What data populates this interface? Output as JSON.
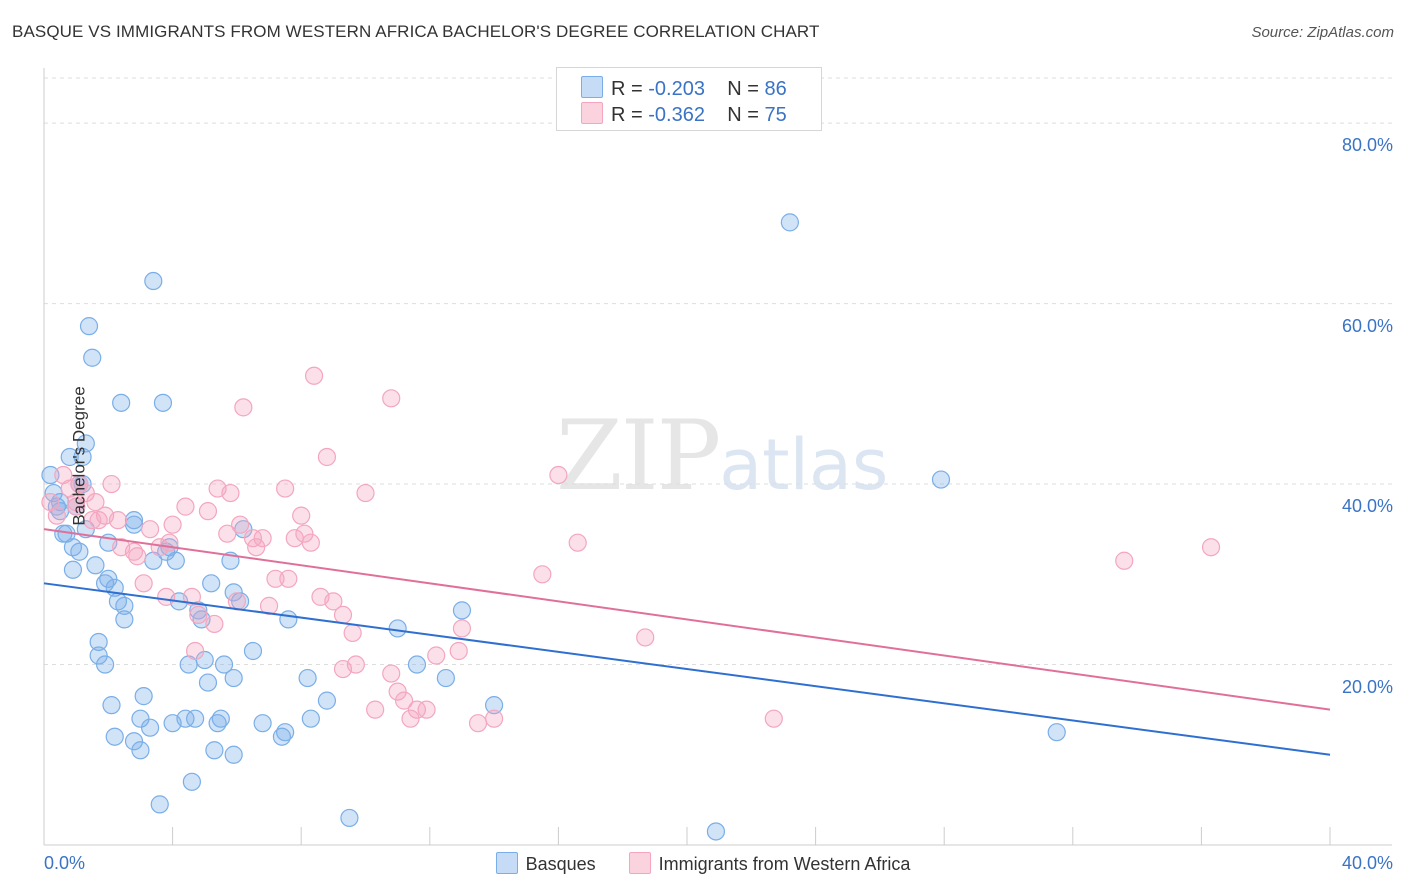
{
  "header": {
    "title": "BASQUE VS IMMIGRANTS FROM WESTERN AFRICA BACHELOR'S DEGREE CORRELATION CHART",
    "source": "Source: ZipAtlas.com"
  },
  "watermark": {
    "zip": "ZIP",
    "atlas": "atlas"
  },
  "legend": {
    "rows": [
      {
        "r_label": "R =",
        "r_value": "-0.203",
        "n_label": "N =",
        "n_value": "86",
        "color": "#a8c8f0"
      },
      {
        "r_label": "R =",
        "r_value": "-0.362",
        "n_label": "N =",
        "n_value": "75",
        "color": "#f5b8cb"
      }
    ]
  },
  "chart_data": {
    "type": "scatter",
    "title": "BASQUE VS IMMIGRANTS FROM WESTERN AFRICA BACHELOR'S DEGREE CORRELATION CHART",
    "xlabel": "",
    "ylabel": "Bachelor's Degree",
    "xlim": [
      0,
      40
    ],
    "ylim": [
      0,
      85
    ],
    "x_tick_labels": [
      "0.0%",
      "40.0%"
    ],
    "y_ticks": [
      20,
      40,
      60,
      80
    ],
    "y_tick_labels": [
      "20.0%",
      "40.0%",
      "60.0%",
      "80.0%"
    ],
    "legend_position": "bottom-center",
    "series": [
      {
        "name": "Basques",
        "color": "#7aaee8",
        "line_color": "#2f6fd0",
        "trend": {
          "x": [
            0,
            40
          ],
          "y": [
            29.0,
            10.0
          ]
        },
        "points": [
          [
            0.2,
            41
          ],
          [
            0.3,
            39
          ],
          [
            0.4,
            37.5
          ],
          [
            0.5,
            37
          ],
          [
            0.6,
            34.5
          ],
          [
            0.7,
            34.5
          ],
          [
            0.8,
            43
          ],
          [
            0.9,
            33
          ],
          [
            0.9,
            30.5
          ],
          [
            1.0,
            37.5
          ],
          [
            1.1,
            32.5
          ],
          [
            1.2,
            40
          ],
          [
            1.2,
            43
          ],
          [
            1.3,
            44.5
          ],
          [
            1.3,
            35
          ],
          [
            1.4,
            57.5
          ],
          [
            1.5,
            54
          ],
          [
            1.6,
            31
          ],
          [
            1.7,
            22.5
          ],
          [
            1.7,
            21
          ],
          [
            1.9,
            29
          ],
          [
            1.9,
            20
          ],
          [
            2.0,
            33.5
          ],
          [
            2.0,
            29.5
          ],
          [
            2.1,
            15.5
          ],
          [
            2.2,
            12
          ],
          [
            2.2,
            28.5
          ],
          [
            2.3,
            27
          ],
          [
            2.4,
            49
          ],
          [
            2.5,
            26.5
          ],
          [
            2.5,
            25
          ],
          [
            2.8,
            11.5
          ],
          [
            2.8,
            36
          ],
          [
            2.8,
            35.5
          ],
          [
            3.0,
            14
          ],
          [
            3.0,
            10.5
          ],
          [
            3.1,
            16.5
          ],
          [
            3.3,
            13
          ],
          [
            3.4,
            62.5
          ],
          [
            3.4,
            31.5
          ],
          [
            3.6,
            4.5
          ],
          [
            3.7,
            49
          ],
          [
            3.8,
            32.5
          ],
          [
            3.9,
            33
          ],
          [
            4.0,
            13.5
          ],
          [
            4.1,
            31.5
          ],
          [
            4.2,
            27
          ],
          [
            4.4,
            14
          ],
          [
            4.5,
            20
          ],
          [
            4.6,
            7
          ],
          [
            4.7,
            14
          ],
          [
            4.8,
            26
          ],
          [
            4.9,
            25
          ],
          [
            5.0,
            20.5
          ],
          [
            5.1,
            18
          ],
          [
            5.2,
            29
          ],
          [
            5.3,
            10.5
          ],
          [
            5.4,
            13.5
          ],
          [
            5.5,
            14
          ],
          [
            5.6,
            20
          ],
          [
            5.8,
            31.5
          ],
          [
            5.9,
            18.5
          ],
          [
            5.9,
            10
          ],
          [
            5.9,
            28
          ],
          [
            6.1,
            27
          ],
          [
            6.2,
            35
          ],
          [
            6.5,
            21.5
          ],
          [
            6.8,
            13.5
          ],
          [
            7.4,
            12
          ],
          [
            7.5,
            12.5
          ],
          [
            7.6,
            25
          ],
          [
            8.3,
            14
          ],
          [
            8.2,
            18.5
          ],
          [
            8.8,
            16
          ],
          [
            9.5,
            3
          ],
          [
            11.0,
            24
          ],
          [
            11.6,
            20
          ],
          [
            12.5,
            18.5
          ],
          [
            13.0,
            26
          ],
          [
            14.0,
            15.5
          ],
          [
            20.9,
            1.5
          ],
          [
            23.2,
            69
          ],
          [
            27.9,
            40.5
          ],
          [
            31.5,
            12.5
          ],
          [
            1.1,
            40
          ],
          [
            0.5,
            38
          ]
        ]
      },
      {
        "name": "Immigrants from Western Africa",
        "color": "#f4a6bf",
        "line_color": "#e07099",
        "trend": {
          "x": [
            0,
            40
          ],
          "y": [
            35.0,
            15.0
          ]
        },
        "points": [
          [
            0.2,
            38
          ],
          [
            0.4,
            36.5
          ],
          [
            0.6,
            41
          ],
          [
            0.8,
            39.5
          ],
          [
            1.0,
            37.5
          ],
          [
            1.1,
            40
          ],
          [
            1.3,
            39
          ],
          [
            1.5,
            36
          ],
          [
            1.6,
            38
          ],
          [
            1.7,
            36
          ],
          [
            1.9,
            36.5
          ],
          [
            2.1,
            40
          ],
          [
            2.3,
            36
          ],
          [
            2.4,
            33
          ],
          [
            2.8,
            32.5
          ],
          [
            2.9,
            32
          ],
          [
            3.1,
            29
          ],
          [
            3.3,
            35
          ],
          [
            3.6,
            33
          ],
          [
            3.8,
            27.5
          ],
          [
            3.9,
            33.5
          ],
          [
            4.0,
            35.5
          ],
          [
            4.4,
            37.5
          ],
          [
            4.6,
            27.5
          ],
          [
            4.7,
            21.5
          ],
          [
            4.8,
            25.5
          ],
          [
            5.1,
            37
          ],
          [
            5.3,
            24.5
          ],
          [
            5.4,
            39.5
          ],
          [
            5.7,
            34.5
          ],
          [
            5.8,
            39
          ],
          [
            6.0,
            27
          ],
          [
            6.1,
            35.5
          ],
          [
            6.2,
            48.5
          ],
          [
            6.5,
            34
          ],
          [
            6.6,
            33
          ],
          [
            6.8,
            34
          ],
          [
            7.0,
            26.5
          ],
          [
            7.2,
            29.5
          ],
          [
            7.5,
            39.5
          ],
          [
            7.6,
            29.5
          ],
          [
            7.8,
            34
          ],
          [
            8.0,
            36.5
          ],
          [
            8.1,
            34.5
          ],
          [
            8.3,
            33.5
          ],
          [
            8.4,
            52
          ],
          [
            8.6,
            27.5
          ],
          [
            8.8,
            43
          ],
          [
            9.0,
            27
          ],
          [
            9.3,
            19.5
          ],
          [
            9.3,
            25.5
          ],
          [
            9.6,
            23.5
          ],
          [
            9.7,
            20
          ],
          [
            10.0,
            39
          ],
          [
            10.3,
            15
          ],
          [
            10.8,
            49.5
          ],
          [
            10.8,
            19
          ],
          [
            11.0,
            17
          ],
          [
            11.2,
            16
          ],
          [
            11.4,
            14
          ],
          [
            11.6,
            15
          ],
          [
            11.9,
            15
          ],
          [
            12.2,
            21
          ],
          [
            12.9,
            21.5
          ],
          [
            13.0,
            24
          ],
          [
            13.5,
            13.5
          ],
          [
            14.0,
            14
          ],
          [
            15.5,
            30
          ],
          [
            16.0,
            41
          ],
          [
            16.6,
            33.5
          ],
          [
            18.7,
            23
          ],
          [
            22.7,
            14
          ],
          [
            33.6,
            31.5
          ],
          [
            36.3,
            33
          ],
          [
            1.0,
            38
          ]
        ]
      }
    ]
  }
}
